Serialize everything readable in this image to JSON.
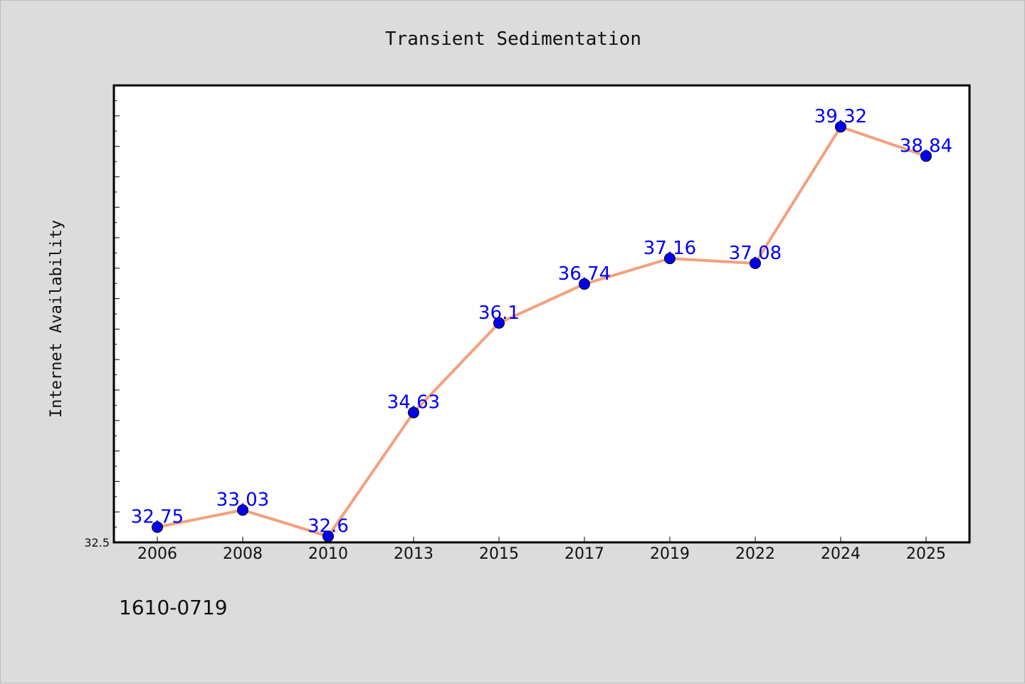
{
  "chart_data": {
    "type": "line",
    "title": "Transient Sedimentation",
    "xlabel": "",
    "ylabel": "Internet Availability",
    "categories": [
      "2006",
      "2008",
      "2010",
      "2013",
      "2015",
      "2017",
      "2019",
      "2022",
      "2024",
      "2025"
    ],
    "series": [
      {
        "values": [
          32.75,
          33.03,
          32.6,
          34.63,
          36.1,
          36.74,
          37.16,
          37.08,
          39.32,
          38.84
        ]
      }
    ],
    "ylim": [
      32.5,
      40.0
    ],
    "y_tick_labels": [
      "32.5"
    ],
    "data_labels": [
      "32.75",
      "33.03",
      "32.6",
      "34.63",
      "36.1",
      "36.74",
      "37.16",
      "37.08",
      "39.32",
      "38.84"
    ],
    "grid": false,
    "legend": "none",
    "line_color": "#f4a07e",
    "marker_color": "#0000ee",
    "label_color": "#0000ee"
  },
  "footnote": "1610-0719"
}
